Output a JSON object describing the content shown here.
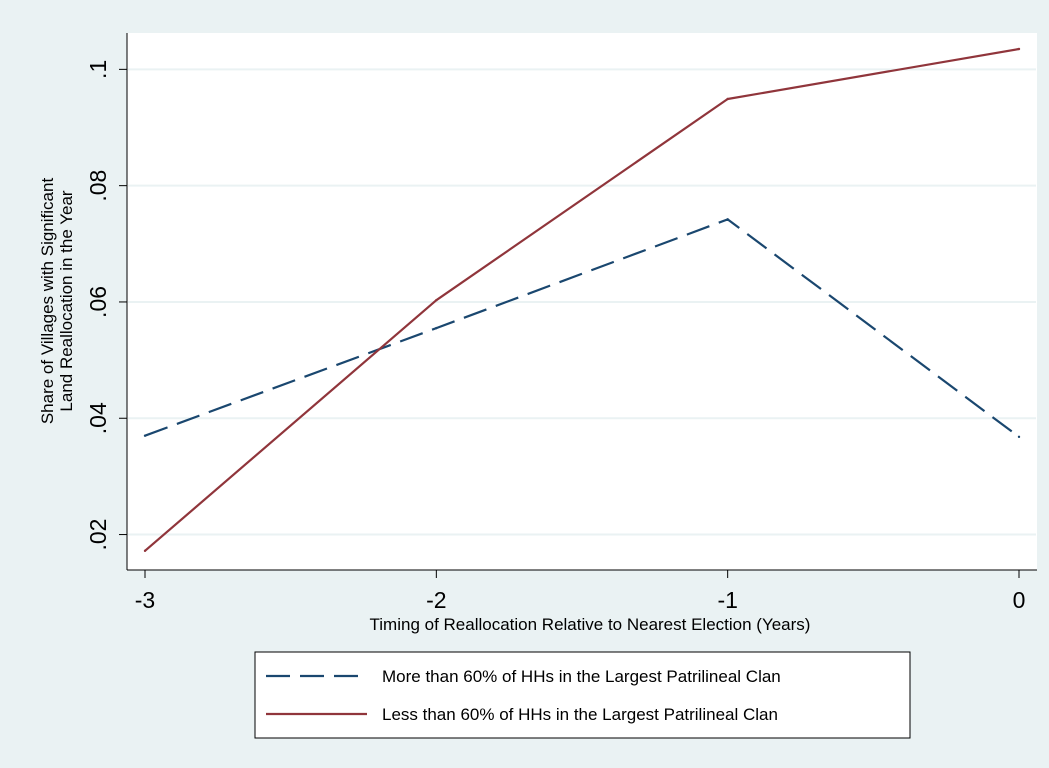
{
  "chart_data": {
    "type": "line",
    "xlabel": "Timing of Reallocation Relative to Nearest Election (Years)",
    "ylabel_lines": [
      "Share of Villages with Significant",
      "Land Reallocation in the Year"
    ],
    "x": [
      -3,
      -2,
      -1,
      0
    ],
    "x_ticks": [
      -3,
      -2,
      -1,
      0
    ],
    "x_tick_labels": [
      "-3",
      "-2",
      "-1",
      "0"
    ],
    "y_ticks": [
      0.02,
      0.04,
      0.06,
      0.08,
      0.1
    ],
    "y_tick_labels": [
      ".02",
      ".04",
      ".06",
      ".08",
      ".1"
    ],
    "xlim": [
      -3,
      0
    ],
    "ylim": [
      0.017,
      0.1035
    ],
    "grid": true,
    "legend_position": "bottom",
    "series": [
      {
        "name": "More than 60% of HHs in the Largest Patrilineal Clan",
        "values": [
          0.037,
          0.0555,
          0.0742,
          0.0368
        ],
        "color": "#1a476f",
        "style": "dashed"
      },
      {
        "name": "Less than 60% of HHs in the Largest Patrilineal Clan",
        "values": [
          0.0172,
          0.0603,
          0.0949,
          0.1035
        ],
        "color": "#90353b",
        "style": "solid"
      }
    ]
  }
}
